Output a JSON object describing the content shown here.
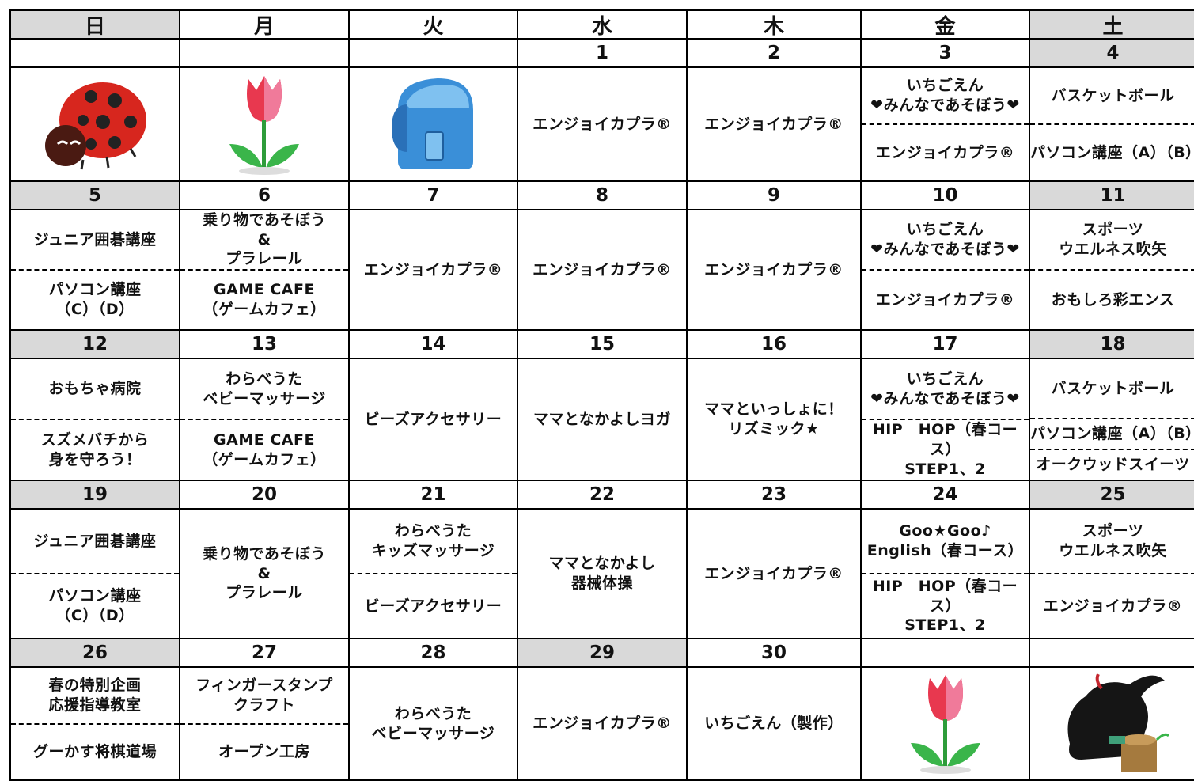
{
  "header": {
    "days": [
      "日",
      "月",
      "火",
      "水",
      "木",
      "金",
      "土"
    ]
  },
  "weeks": [
    {
      "dates": [
        null,
        null,
        null,
        1,
        2,
        3,
        4
      ],
      "cells": [
        [],
        [],
        [],
        [
          "エンジョイカプラ®"
        ],
        [
          "エンジョイカプラ®"
        ],
        [
          "いちごえん\n❤みんなであそぼう❤",
          "エンジョイカプラ®"
        ],
        [
          "バスケットボール",
          "パソコン講座（A）（B）"
        ]
      ]
    },
    {
      "dates": [
        5,
        6,
        7,
        8,
        9,
        10,
        11
      ],
      "cells": [
        [
          "ジュニア囲碁講座",
          "パソコン講座\n（C）（D）"
        ],
        [
          "乗り物であそぼう\n&\nプラレール",
          "GAME CAFE\n（ゲームカフェ）"
        ],
        [
          "エンジョイカプラ®"
        ],
        [
          "エンジョイカプラ®"
        ],
        [
          "エンジョイカプラ®"
        ],
        [
          "いちごえん\n❤みんなであそぼう❤",
          "エンジョイカプラ®"
        ],
        [
          "スポーツ\nウエルネス吹矢",
          "おもしろ彩エンス"
        ]
      ]
    },
    {
      "dates": [
        12,
        13,
        14,
        15,
        16,
        17,
        18
      ],
      "cells": [
        [
          "おもちゃ病院",
          "スズメバチから\n身を守ろう！"
        ],
        [
          "わらべうた\nベビーマッサージ",
          "GAME CAFE\n（ゲームカフェ）"
        ],
        [
          "ビーズアクセサリー"
        ],
        [
          "ママとなかよしヨガ"
        ],
        [
          "ママといっしょに！\nリズミック★"
        ],
        [
          "いちごえん\n❤みんなであそぼう❤",
          "HIP　HOP（春コース）\nSTEP1、2"
        ],
        [
          "バスケットボール",
          "パソコン講座（A）（B）",
          "オークウッドスイーツ"
        ]
      ]
    },
    {
      "dates": [
        19,
        20,
        21,
        22,
        23,
        24,
        25
      ],
      "cells": [
        [
          "ジュニア囲碁講座",
          "パソコン講座\n（C）（D）"
        ],
        [
          "乗り物であそぼう\n&\nプラレール"
        ],
        [
          "わらべうた\nキッズマッサージ",
          "ビーズアクセサリー"
        ],
        [
          "ママとなかよし\n器械体操"
        ],
        [
          "エンジョイカプラ®"
        ],
        [
          "Goo★Goo♪\nEnglish（春コース）",
          "HIP　HOP（春コース）\nSTEP1、2"
        ],
        [
          "スポーツ\nウエルネス吹矢",
          "エンジョイカプラ®"
        ]
      ]
    },
    {
      "dates": [
        26,
        27,
        28,
        29,
        30,
        null,
        null
      ],
      "cells": [
        [
          "春の特別企画\n応援指導教室",
          "グーかす将棋道場"
        ],
        [
          "フィンガースタンプ\nクラフト",
          "オープン工房"
        ],
        [
          "わらべうた\nベビーマッサージ"
        ],
        [
          "エンジョイカプラ®"
        ],
        [
          "いちごえん（製作）"
        ],
        [],
        []
      ]
    }
  ]
}
